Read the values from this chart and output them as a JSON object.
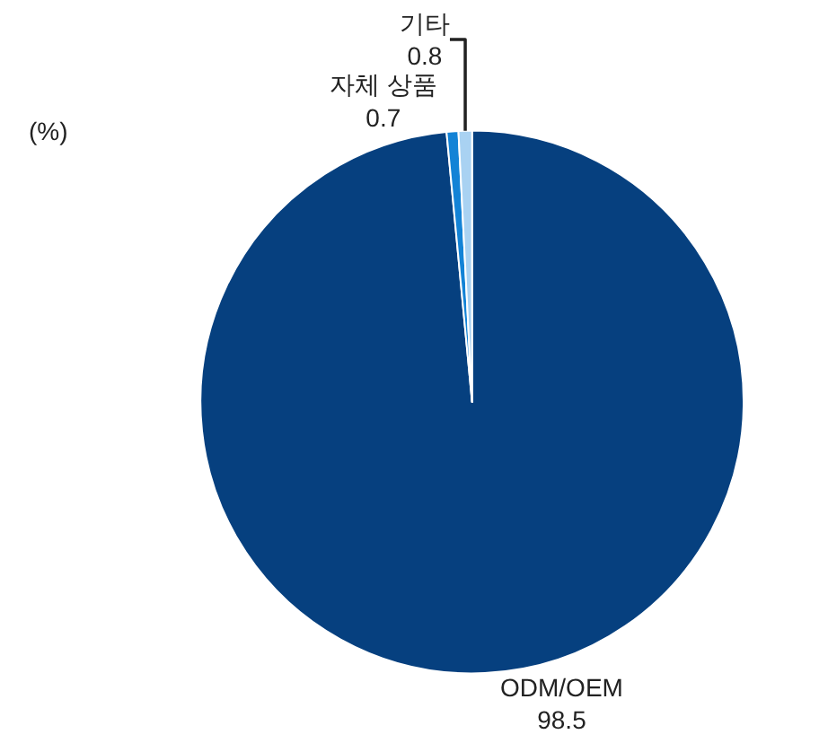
{
  "chart_data": {
    "type": "pie",
    "categories": [
      "ODM/OEM",
      "자체 상품",
      "기타"
    ],
    "values": [
      98.5,
      0.7,
      0.8
    ],
    "colors": [
      "#06407f",
      "#1383d6",
      "#a9d2f2"
    ],
    "data_labels": true,
    "annotations": [
      "(%)"
    ]
  }
}
